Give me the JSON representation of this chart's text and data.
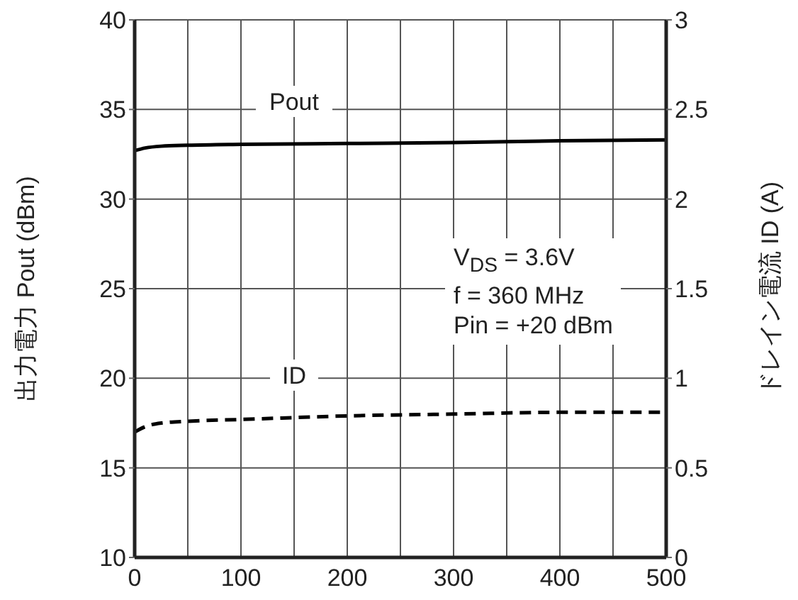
{
  "chart_data": {
    "type": "line",
    "ylabel": "出力電力  Pout  (dBm)",
    "y2label": "ドレイン電流  ID  (A)",
    "x": [
      0,
      10,
      25,
      50,
      100,
      200,
      300,
      400,
      500
    ],
    "series": [
      {
        "name": "Pout",
        "color": "#000000",
        "line_style": "solid",
        "values": [
          32.7,
          32.85,
          32.95,
          33.0,
          33.05,
          33.1,
          33.15,
          33.25,
          33.3
        ]
      },
      {
        "name": "ID",
        "color": "#000000",
        "line_style": "dashed",
        "axis": "y2",
        "values": [
          0.7,
          0.73,
          0.75,
          0.76,
          0.77,
          0.79,
          0.8,
          0.81,
          0.81
        ]
      }
    ],
    "xlim": [
      0,
      500
    ],
    "xticks": [
      0,
      {
        "value": 50,
        "label": null
      },
      100,
      {
        "value": 150,
        "label": null
      },
      200,
      {
        "value": 250,
        "label": null
      },
      300,
      {
        "value": 350,
        "label": null
      },
      400,
      {
        "value": 450,
        "label": null
      },
      500
    ],
    "ylim": [
      10,
      40
    ],
    "yticks": [
      10,
      15,
      20,
      25,
      30,
      35,
      40
    ],
    "y2lim": [
      0,
      3
    ],
    "y2ticks": [
      0,
      0.5,
      1,
      1.5,
      2,
      2.5,
      3
    ],
    "grid": true,
    "legend": false,
    "marker": "none",
    "annotations": [
      "V$_{DS}$ = 3.6V\nf = 360 MHz\nPin = +20 dBm"
    ]
  }
}
